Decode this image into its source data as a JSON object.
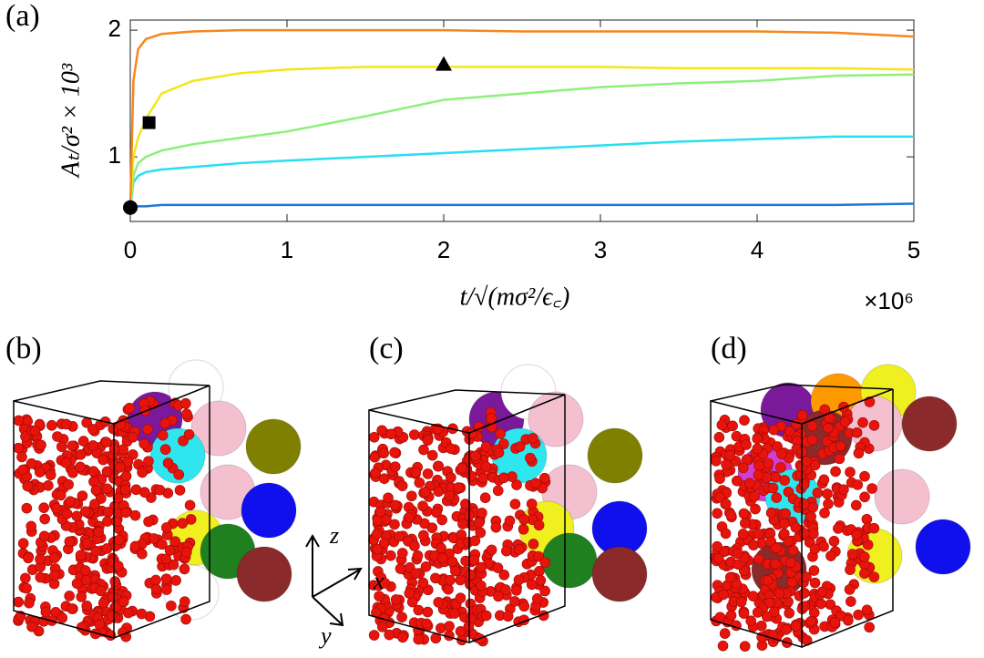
{
  "chart_data": {
    "type": "line",
    "panel_label": "(a)",
    "ylabel": "Aₜ/σ² × 10³",
    "xlabel": "t/√(mσ²/ϵ꜀)",
    "x_multiplier": "×10⁶",
    "x": [
      0,
      0.02,
      0.05,
      0.1,
      0.2,
      0.4,
      0.7,
      1,
      1.5,
      2,
      2.5,
      3,
      3.5,
      4,
      4.5,
      5
    ],
    "series": [
      {
        "color": "#f7861c",
        "values": [
          0.6,
          1.6,
          1.85,
          1.93,
          1.97,
          1.99,
          2.0,
          2.0,
          2.0,
          2.0,
          1.99,
          1.99,
          1.99,
          1.99,
          1.98,
          1.95
        ]
      },
      {
        "color": "#f2e61a",
        "values": [
          0.6,
          1.0,
          1.15,
          1.3,
          1.5,
          1.6,
          1.66,
          1.69,
          1.71,
          1.71,
          1.71,
          1.71,
          1.7,
          1.7,
          1.7,
          1.69
        ]
      },
      {
        "color": "#8cf07a",
        "values": [
          0.6,
          0.85,
          0.95,
          1.0,
          1.05,
          1.1,
          1.15,
          1.2,
          1.32,
          1.45,
          1.5,
          1.55,
          1.58,
          1.6,
          1.64,
          1.65
        ]
      },
      {
        "color": "#27dff0",
        "values": [
          0.6,
          0.8,
          0.85,
          0.88,
          0.9,
          0.92,
          0.95,
          0.97,
          1.0,
          1.03,
          1.06,
          1.09,
          1.12,
          1.14,
          1.16,
          1.16
        ]
      },
      {
        "color": "#1f78d6",
        "values": [
          0.6,
          0.6,
          0.61,
          0.61,
          0.62,
          0.62,
          0.62,
          0.62,
          0.62,
          0.62,
          0.62,
          0.62,
          0.62,
          0.62,
          0.62,
          0.63
        ]
      }
    ],
    "markers": [
      {
        "shape": "circle",
        "x": 0,
        "y": 0.6
      },
      {
        "shape": "square",
        "x": 0.12,
        "y": 1.27
      },
      {
        "shape": "triangle",
        "x": 2,
        "y": 1.73
      }
    ],
    "xlim": [
      0,
      5
    ],
    "ylim": [
      0.49,
      2.08
    ],
    "xticks": [
      0,
      1,
      2,
      3,
      4,
      5
    ],
    "yticks": [
      1,
      2
    ]
  },
  "panels": [
    {
      "label": "(b)"
    },
    {
      "label": "(c)"
    },
    {
      "label": "(d)"
    }
  ],
  "axes_triad": {
    "z": "z",
    "x": "x",
    "y": "y"
  }
}
